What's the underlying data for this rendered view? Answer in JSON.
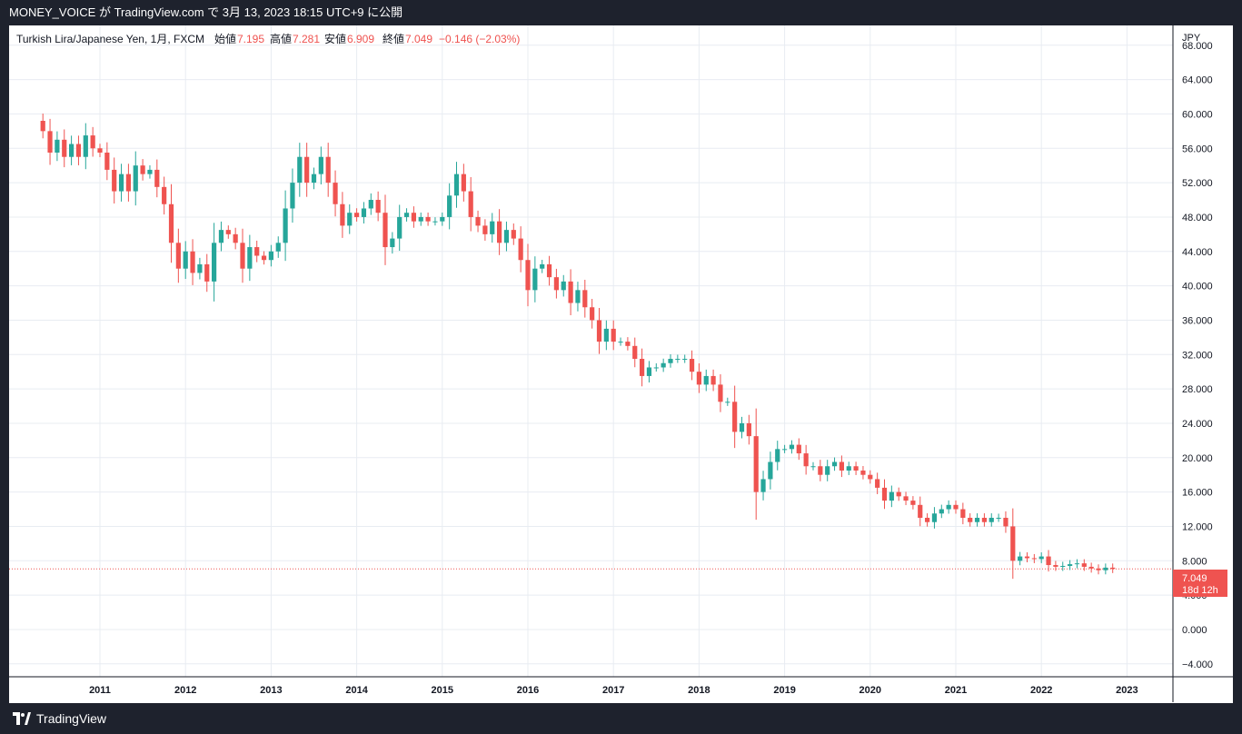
{
  "header": {
    "publish_line": "MONEY_VOICE が TradingView.com で 3月 13, 2023 18:15 UTC+9 に公開"
  },
  "legend": {
    "symbol": "Turkish Lira/Japanese Yen, 1月, FXCM",
    "open_label": "始値",
    "open_value": "7.195",
    "high_label": "高値",
    "high_value": "7.281",
    "low_label": "安値",
    "low_value": "6.909",
    "close_label": "終値",
    "close_value": "7.049",
    "change": "−0.146 (−2.03%)"
  },
  "price_tag": {
    "value": "7.049",
    "countdown": "18d 12h"
  },
  "footer": {
    "brand": "TradingView"
  },
  "colors": {
    "up": "#26a69a",
    "down": "#ef5350",
    "grid": "#e8ecf2",
    "text": "#131722",
    "border": "#131722"
  },
  "chart_data": {
    "type": "candlestick",
    "y_unit": "JPY",
    "ylim": [
      -5.5,
      70.3
    ],
    "y_ticks": [
      "68.000",
      "64.000",
      "60.000",
      "56.000",
      "52.000",
      "48.000",
      "44.000",
      "40.000",
      "36.000",
      "32.000",
      "28.000",
      "24.000",
      "20.000",
      "16.000",
      "12.000",
      "8.000",
      "4.000",
      "0.000",
      "−4.000"
    ],
    "x_ticks": [
      "2011",
      "2012",
      "2013",
      "2014",
      "2015",
      "2016",
      "2017",
      "2018",
      "2019",
      "2020",
      "2021",
      "2022",
      "2023"
    ],
    "grid": true,
    "first_month": "2010-05",
    "last_close": 7.049,
    "closes": [
      58.0,
      55.5,
      57.0,
      55.0,
      56.5,
      55.0,
      57.5,
      56.0,
      55.5,
      53.5,
      51.0,
      53.0,
      51.0,
      54.0,
      53.0,
      53.5,
      51.5,
      49.5,
      45.0,
      42.0,
      44.0,
      41.5,
      42.5,
      40.5,
      45.0,
      46.5,
      46.0,
      45.0,
      42.0,
      44.5,
      43.5,
      43.0,
      44.0,
      45.0,
      49.0,
      52.0,
      55.0,
      52.0,
      53.0,
      55.0,
      52.0,
      49.5,
      47.0,
      48.5,
      48.0,
      49.0,
      50.0,
      48.5,
      44.5,
      45.5,
      48.0,
      48.5,
      47.5,
      48.0,
      47.5,
      47.5,
      48.0,
      50.5,
      53.0,
      51.0,
      48.0,
      47.0,
      46.0,
      47.5,
      45.0,
      46.5,
      45.5,
      43.0,
      39.5,
      42.0,
      42.5,
      41.0,
      39.5,
      40.5,
      38.0,
      39.5,
      37.5,
      36.0,
      33.5,
      35.0,
      33.5,
      33.5,
      33.0,
      31.5,
      29.5,
      30.5,
      30.5,
      31.0,
      31.5,
      31.5,
      31.5,
      30.0,
      28.5,
      29.5,
      28.5,
      26.5,
      26.5,
      23.0,
      24.0,
      22.5,
      16.0,
      17.5,
      19.5,
      21.0,
      21.0,
      21.5,
      20.5,
      19.0,
      19.0,
      18.0,
      19.0,
      19.5,
      18.5,
      19.0,
      18.5,
      18.0,
      17.5,
      16.5,
      15.0,
      16.0,
      15.5,
      15.0,
      14.5,
      13.0,
      12.5,
      13.5,
      14.0,
      14.5,
      14.0,
      13.0,
      12.5,
      13.0,
      12.5,
      13.0,
      13.0,
      12.0,
      8.0,
      8.5,
      8.3,
      8.2,
      8.5,
      7.5,
      7.3,
      7.4,
      7.6,
      7.7,
      7.3,
      7.1,
      6.9,
      7.2,
      7.049
    ]
  }
}
